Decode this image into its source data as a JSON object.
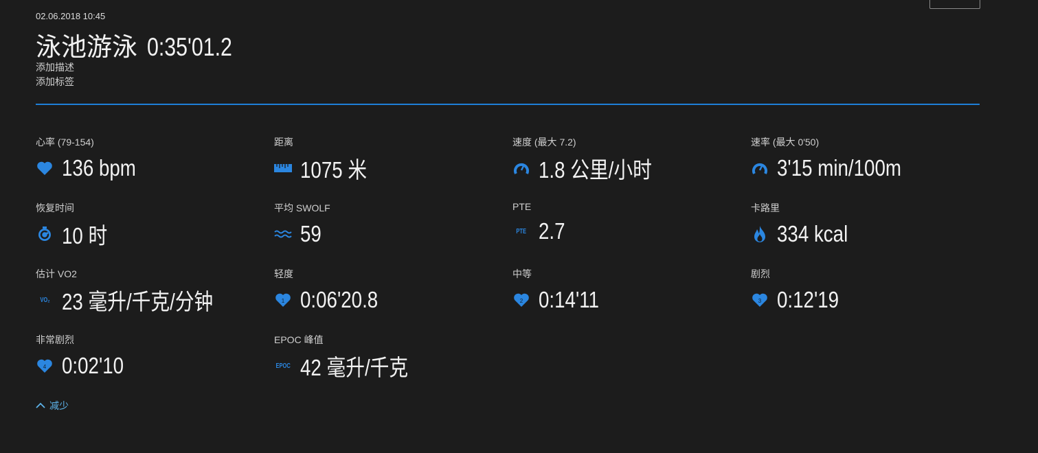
{
  "header": {
    "date": "02.06.2018 10:45",
    "activity": "泳池游泳",
    "duration": "0:35'01.2",
    "add_description": "添加描述",
    "add_tags": "添加标签"
  },
  "accent_color": "#1e7fd8",
  "stats": [
    {
      "label": "心率 (79-154)",
      "value": "136 bpm",
      "icon": "heart-icon"
    },
    {
      "label": "距离",
      "value": "1075 米",
      "icon": "ruler-icon"
    },
    {
      "label": "速度 (最大  7.2)",
      "value": "1.8 公里/小时",
      "icon": "speedometer-icon"
    },
    {
      "label": "速率 (最大  0'50)",
      "value": "3'15 min/100m",
      "icon": "speedometer-icon"
    },
    {
      "label": "恢复时间",
      "value": "10 时",
      "icon": "recovery-timer-icon"
    },
    {
      "label": "平均 SWOLF",
      "value": "59",
      "icon": "waves-icon"
    },
    {
      "label": "PTE",
      "value": "2.7",
      "icon": "pte-icon",
      "icon_text": "PTE"
    },
    {
      "label": "卡路里",
      "value": "334 kcal",
      "icon": "flame-icon"
    },
    {
      "label": "估计 VO2",
      "value": "23 毫升/千克/分钟",
      "icon": "vo2-icon",
      "icon_text": "VO₂"
    },
    {
      "label": "轻度",
      "value": "0:06'20.8",
      "icon": "heart-zone-1-icon",
      "zone": "1"
    },
    {
      "label": "中等",
      "value": "0:14'11",
      "icon": "heart-zone-2-icon",
      "zone": "2"
    },
    {
      "label": "剧烈",
      "value": "0:12'19",
      "icon": "heart-zone-3-icon",
      "zone": "3"
    },
    {
      "label": "非常剧烈",
      "value": "0:02'10",
      "icon": "heart-zone-4-icon",
      "zone": "4"
    },
    {
      "label": "EPOC 峰值",
      "value": "42 毫升/千克",
      "icon": "epoc-icon",
      "icon_text": "EPOC"
    }
  ],
  "show_less": "减少"
}
